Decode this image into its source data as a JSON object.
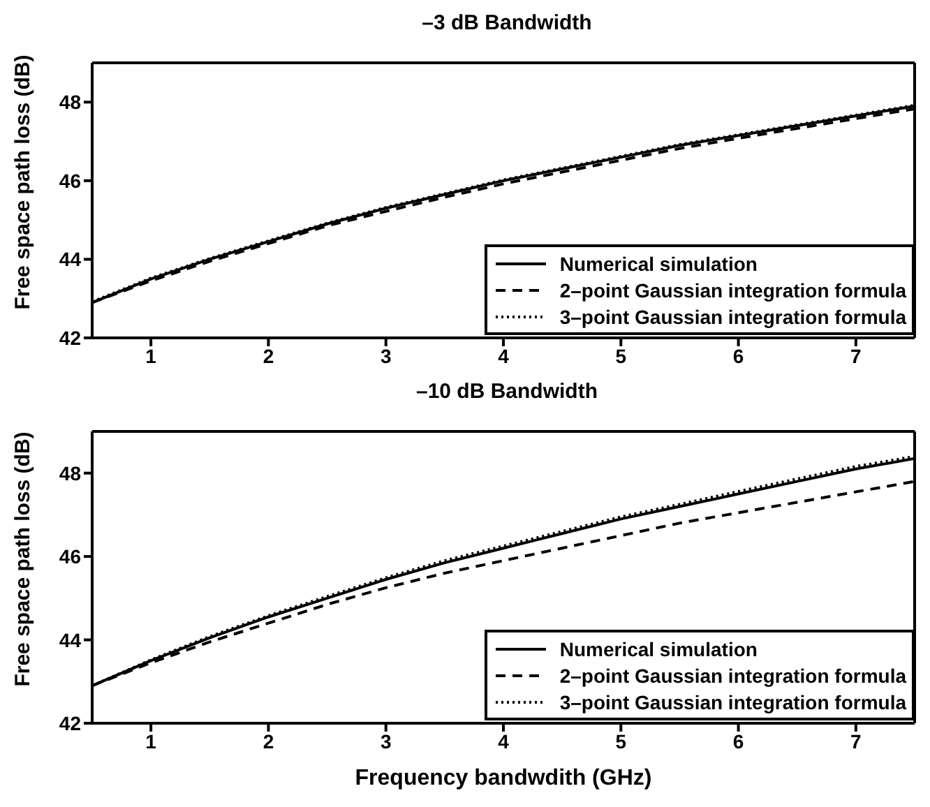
{
  "chart_data": [
    {
      "type": "line",
      "title": "–3 dB Bandwidth",
      "ylabel": "Free space path loss (dB)",
      "x": [
        0.5,
        1,
        1.5,
        2,
        2.5,
        3,
        3.5,
        4,
        4.5,
        5,
        5.5,
        6,
        6.5,
        7,
        7.5
      ],
      "xlim": [
        0.5,
        7.5
      ],
      "xticks": [
        1,
        2,
        3,
        4,
        5,
        6,
        7
      ],
      "ylim": [
        42,
        49
      ],
      "yticks": [
        42,
        44,
        46,
        48
      ],
      "grid": false,
      "legend": "bottom right",
      "marker": "none",
      "series": [
        {
          "name": "Numerical simulation",
          "color": "#000000",
          "line_style": "solid",
          "values": [
            42.9,
            43.5,
            44.0,
            44.45,
            44.9,
            45.3,
            45.65,
            46.0,
            46.3,
            46.6,
            46.9,
            47.15,
            47.4,
            47.65,
            47.9
          ]
        },
        {
          "name": "2–point Gaussian integration formula",
          "color": "#000000",
          "line_style": "dashed",
          "values": [
            42.9,
            43.45,
            43.95,
            44.4,
            44.85,
            45.22,
            45.58,
            45.92,
            46.22,
            46.52,
            46.82,
            47.08,
            47.33,
            47.58,
            47.83
          ]
        },
        {
          "name": "3–point Gaussian integration formula",
          "color": "#000000",
          "line_style": "dotted",
          "values": [
            42.92,
            43.52,
            44.02,
            44.47,
            44.92,
            45.32,
            45.67,
            46.02,
            46.32,
            46.62,
            46.92,
            47.17,
            47.42,
            47.67,
            47.92
          ]
        }
      ]
    },
    {
      "type": "line",
      "title": "–10 dB Bandwidth",
      "xlabel": "Frequency bandwdith (GHz)",
      "ylabel": "Free space path loss (dB)",
      "x": [
        0.5,
        1,
        1.5,
        2,
        2.5,
        3,
        3.5,
        4,
        4.5,
        5,
        5.5,
        6,
        6.5,
        7,
        7.5
      ],
      "xlim": [
        0.5,
        7.5
      ],
      "xticks": [
        1,
        2,
        3,
        4,
        5,
        6,
        7
      ],
      "ylim": [
        42,
        49
      ],
      "yticks": [
        42,
        44,
        46,
        48
      ],
      "grid": false,
      "legend": "bottom right",
      "marker": "none",
      "series": [
        {
          "name": "Numerical simulation",
          "color": "#000000",
          "line_style": "solid",
          "values": [
            42.9,
            43.5,
            44.05,
            44.55,
            45.0,
            45.45,
            45.85,
            46.2,
            46.55,
            46.9,
            47.2,
            47.5,
            47.8,
            48.1,
            48.35
          ]
        },
        {
          "name": "2–point Gaussian integration formula",
          "color": "#000000",
          "line_style": "dashed",
          "values": [
            42.9,
            43.45,
            43.95,
            44.4,
            44.85,
            45.25,
            45.6,
            45.9,
            46.2,
            46.5,
            46.8,
            47.05,
            47.3,
            47.55,
            47.8
          ]
        },
        {
          "name": "3–point Gaussian integration formula",
          "color": "#000000",
          "line_style": "dotted",
          "values": [
            42.9,
            43.52,
            44.08,
            44.58,
            45.04,
            45.49,
            45.9,
            46.25,
            46.6,
            46.95,
            47.25,
            47.56,
            47.86,
            48.16,
            48.4
          ]
        }
      ]
    }
  ]
}
